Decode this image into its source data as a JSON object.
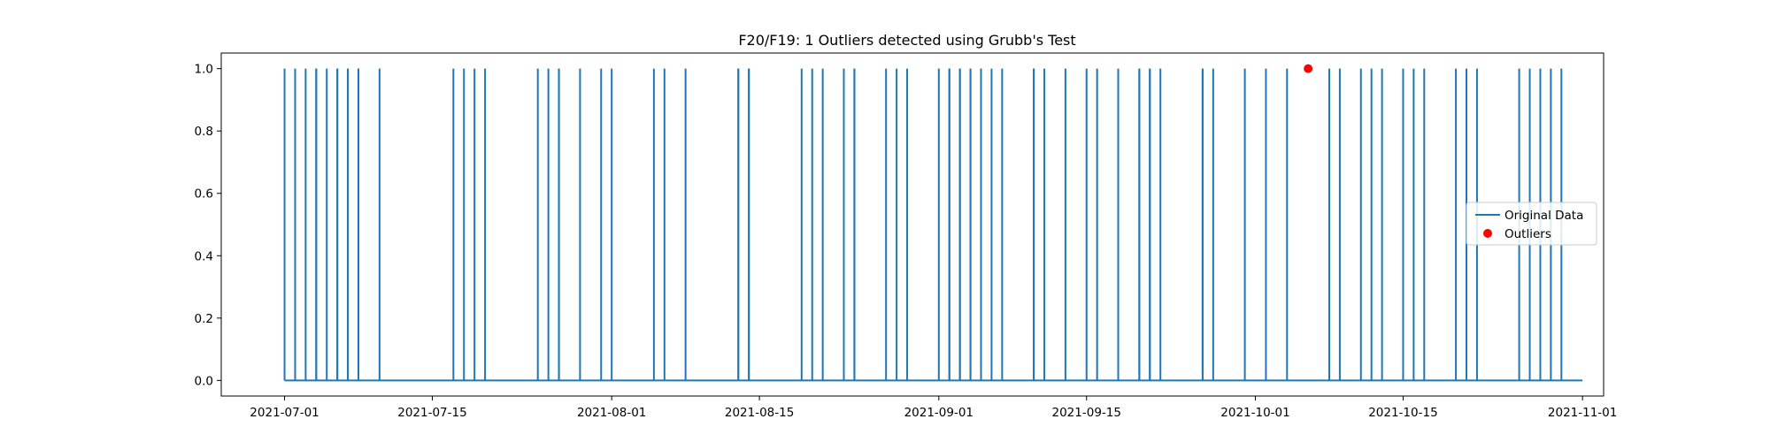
{
  "chart_data": {
    "type": "line",
    "title": "F20/F19: 1 Outliers detected using Grubb's Test",
    "xlabel": "",
    "ylabel": "",
    "x_range": [
      "2021-07-01",
      "2021-11-01"
    ],
    "xlim": [
      "2021-06-25",
      "2021-11-03"
    ],
    "ylim": [
      -0.05,
      1.05
    ],
    "x_ticks": [
      "2021-07-01",
      "2021-07-15",
      "2021-08-01",
      "2021-08-15",
      "2021-09-01",
      "2021-09-15",
      "2021-10-01",
      "2021-10-15",
      "2021-11-01"
    ],
    "y_ticks": [
      "0.0",
      "0.2",
      "0.4",
      "0.6",
      "0.8",
      "1.0"
    ],
    "grid": false,
    "legend_position": "center-right",
    "series": [
      {
        "name": "Original Data",
        "color": "#1f77b4",
        "baseline": 0,
        "spike_value": 1,
        "spike_dates": [
          "2021-07-01",
          "2021-07-02",
          "2021-07-03",
          "2021-07-04",
          "2021-07-04",
          "2021-07-05",
          "2021-07-06",
          "2021-07-06",
          "2021-07-07",
          "2021-07-07",
          "2021-07-08",
          "2021-07-08",
          "2021-07-10",
          "2021-07-17",
          "2021-07-18",
          "2021-07-19",
          "2021-07-20",
          "2021-07-25",
          "2021-07-26",
          "2021-07-27",
          "2021-07-27",
          "2021-07-29",
          "2021-07-31",
          "2021-08-01",
          "2021-08-05",
          "2021-08-06",
          "2021-08-08",
          "2021-08-13",
          "2021-08-13",
          "2021-08-14",
          "2021-08-14",
          "2021-08-19",
          "2021-08-20",
          "2021-08-21",
          "2021-08-23",
          "2021-08-24",
          "2021-08-24",
          "2021-08-27",
          "2021-08-28",
          "2021-08-29",
          "2021-09-01",
          "2021-09-02",
          "2021-09-02",
          "2021-09-03",
          "2021-09-03",
          "2021-09-04",
          "2021-09-04",
          "2021-09-05",
          "2021-09-05",
          "2021-09-06",
          "2021-09-07",
          "2021-09-10",
          "2021-09-10",
          "2021-09-11",
          "2021-09-13",
          "2021-09-15",
          "2021-09-16",
          "2021-09-18",
          "2021-09-20",
          "2021-09-20",
          "2021-09-21",
          "2021-09-21",
          "2021-09-22",
          "2021-09-26",
          "2021-09-26",
          "2021-09-27",
          "2021-09-30",
          "2021-10-02",
          "2021-10-04",
          "2021-10-08",
          "2021-10-09",
          "2021-10-11",
          "2021-10-12",
          "2021-10-13",
          "2021-10-15",
          "2021-10-16",
          "2021-10-17",
          "2021-10-20",
          "2021-10-21",
          "2021-10-22",
          "2021-10-26",
          "2021-10-27",
          "2021-10-28",
          "2021-10-29",
          "2021-10-30"
        ]
      },
      {
        "name": "Outliers",
        "color": "#ff0000",
        "points": [
          {
            "x": "2021-10-06",
            "y": 1
          }
        ]
      }
    ]
  }
}
